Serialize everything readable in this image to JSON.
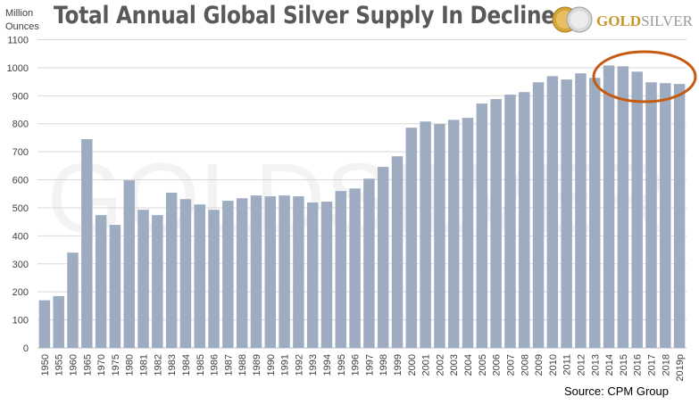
{
  "chart_data": {
    "type": "bar",
    "title": "Total Annual Global Silver Supply In Decline",
    "ylabel": "Million Ounces",
    "xlabel": "",
    "ylim": [
      0,
      1100
    ],
    "yticks": [
      0,
      100,
      200,
      300,
      400,
      500,
      600,
      700,
      800,
      900,
      1000,
      1100
    ],
    "grid": true,
    "bar_color": "#9eacc2",
    "highlight_color": "#c55a11",
    "highlight_categories": [
      "2014",
      "2015",
      "2016",
      "2017",
      "2018",
      "2019p"
    ],
    "categories": [
      "1950",
      "1955",
      "1960",
      "1965",
      "1970",
      "1975",
      "1980",
      "1981",
      "1982",
      "1983",
      "1984",
      "1985",
      "1986",
      "1987",
      "1988",
      "1989",
      "1990",
      "1991",
      "1992",
      "1993",
      "1994",
      "1995",
      "1996",
      "1997",
      "1998",
      "1999",
      "2000",
      "2001",
      "2002",
      "2003",
      "2004",
      "2005",
      "2006",
      "2007",
      "2008",
      "2009",
      "2010",
      "2011",
      "2012",
      "2013",
      "2014",
      "2015",
      "2016",
      "2017",
      "2018",
      "2019p"
    ],
    "values": [
      170,
      185,
      340,
      745,
      474,
      439,
      598,
      493,
      474,
      554,
      531,
      512,
      493,
      525,
      534,
      544,
      541,
      544,
      541,
      519,
      522,
      560,
      569,
      604,
      646,
      684,
      786,
      808,
      799,
      814,
      821,
      872,
      888,
      904,
      913,
      948,
      970,
      958,
      980,
      964,
      1008,
      1005,
      986,
      948,
      945,
      942
    ],
    "source": "Source: CPM Group"
  },
  "header": {
    "yunit_line1": "Million",
    "yunit_line2": "Ounces"
  },
  "logo": {
    "part1": "GOLD",
    "part2": "SILVER",
    "watermark": "GOLDSILVER"
  }
}
